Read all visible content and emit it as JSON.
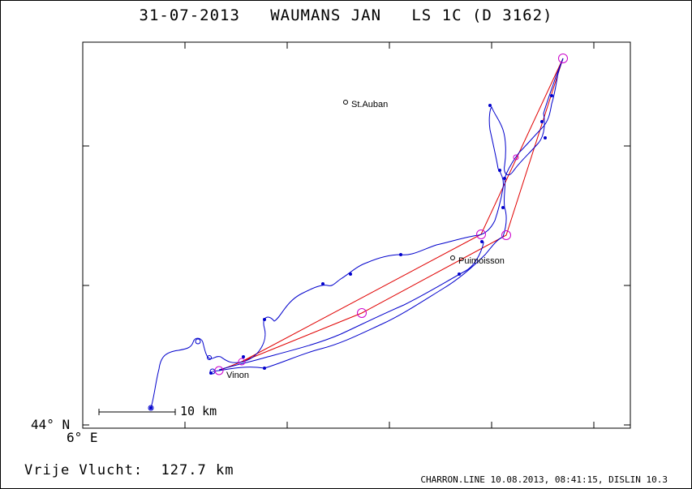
{
  "title": "31-07-2013   WAUMANS JAN   LS 1C (D 3162)",
  "axis": {
    "lat_label": "44° N",
    "lon_label": "6° E"
  },
  "scale_bar": {
    "label": "10 km"
  },
  "places": [
    {
      "name": "St.Auban"
    },
    {
      "name": "Puimoisson"
    },
    {
      "name": "Vinon"
    }
  ],
  "stats": {
    "label": "Vrije Vlucht:",
    "value": "127.7 km"
  },
  "footer": "CHARRON.LINE 10.08.2013, 08:41:15, DISLIN 10.3",
  "colors": {
    "track": "#0000cc",
    "task": "#e00000",
    "turnpoint": "#cc00cc",
    "frame": "#000000"
  }
}
